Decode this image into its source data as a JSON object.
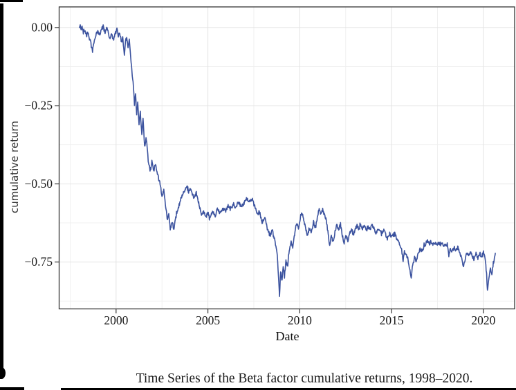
{
  "caption": {
    "text": "Time Series of the Beta factor cumulative returns, 1998–2020."
  },
  "chart_data": {
    "type": "line",
    "title": "",
    "xlabel": "Date",
    "ylabel": "cumulative return",
    "legend": "none",
    "grid": "on",
    "x_range": [
      1996.9,
      2021.7
    ],
    "y_range": [
      -0.9,
      0.066
    ],
    "x_ticks": [
      2000,
      2005,
      2010,
      2015,
      2020
    ],
    "x_tick_labels": [
      "2000",
      "2005",
      "2010",
      "2015",
      "2020"
    ],
    "x_minor_ticks": [
      1997.5,
      2002.5,
      2007.5,
      2012.5,
      2017.5
    ],
    "y_ticks": [
      0.0,
      -0.25,
      -0.5,
      -0.75
    ],
    "y_tick_labels": [
      "0.00",
      "−0.25",
      "−0.50",
      "−0.75"
    ],
    "y_minor_ticks": [
      -0.125,
      -0.375,
      -0.625,
      -0.875
    ],
    "line_color": "#3B529E",
    "grid_major_color": "#e3e3e3",
    "grid_minor_color": "#efefef",
    "panel_border_color": "#343434",
    "tick_color": "#333333",
    "tick_label_color": "#1a1a1a",
    "jitter_amplitude": 0.0055,
    "interp_step_years": 0.02,
    "series": [
      {
        "name": "Beta factor cumulative return",
        "points": [
          [
            1998.0,
            0.0
          ],
          [
            1998.05,
            0.005
          ],
          [
            1998.1,
            -0.005
          ],
          [
            1998.15,
            0.002
          ],
          [
            1998.22,
            -0.015
          ],
          [
            1998.3,
            -0.008
          ],
          [
            1998.38,
            -0.022
          ],
          [
            1998.45,
            -0.012
          ],
          [
            1998.55,
            -0.035
          ],
          [
            1998.65,
            -0.055
          ],
          [
            1998.72,
            -0.075
          ],
          [
            1998.8,
            -0.045
          ],
          [
            1998.9,
            -0.025
          ],
          [
            1999.0,
            -0.012
          ],
          [
            1999.1,
            -0.025
          ],
          [
            1999.2,
            -0.005
          ],
          [
            1999.3,
            0.004
          ],
          [
            1999.4,
            -0.015
          ],
          [
            1999.5,
            0.002
          ],
          [
            1999.58,
            -0.018
          ],
          [
            1999.65,
            -0.035
          ],
          [
            1999.75,
            -0.02
          ],
          [
            1999.85,
            -0.04
          ],
          [
            1999.95,
            -0.022
          ],
          [
            2000.05,
            -0.005
          ],
          [
            2000.12,
            -0.03
          ],
          [
            2000.2,
            -0.015
          ],
          [
            2000.28,
            -0.045
          ],
          [
            2000.36,
            -0.03
          ],
          [
            2000.45,
            -0.088
          ],
          [
            2000.52,
            -0.04
          ],
          [
            2000.58,
            -0.028
          ],
          [
            2000.65,
            -0.06
          ],
          [
            2000.72,
            -0.042
          ],
          [
            2000.8,
            -0.095
          ],
          [
            2000.88,
            -0.15
          ],
          [
            2000.95,
            -0.19
          ],
          [
            2001.0,
            -0.25
          ],
          [
            2001.06,
            -0.21
          ],
          [
            2001.12,
            -0.28
          ],
          [
            2001.18,
            -0.24
          ],
          [
            2001.25,
            -0.31
          ],
          [
            2001.32,
            -0.27
          ],
          [
            2001.4,
            -0.345
          ],
          [
            2001.47,
            -0.29
          ],
          [
            2001.55,
            -0.38
          ],
          [
            2001.65,
            -0.35
          ],
          [
            2001.75,
            -0.425
          ],
          [
            2001.85,
            -0.455
          ],
          [
            2001.95,
            -0.43
          ],
          [
            2002.05,
            -0.46
          ],
          [
            2002.15,
            -0.435
          ],
          [
            2002.25,
            -0.47
          ],
          [
            2002.4,
            -0.5
          ],
          [
            2002.5,
            -0.54
          ],
          [
            2002.6,
            -0.52
          ],
          [
            2002.7,
            -0.575
          ],
          [
            2002.8,
            -0.615
          ],
          [
            2002.87,
            -0.59
          ],
          [
            2002.95,
            -0.645
          ],
          [
            2003.05,
            -0.62
          ],
          [
            2003.15,
            -0.645
          ],
          [
            2003.25,
            -0.61
          ],
          [
            2003.35,
            -0.585
          ],
          [
            2003.45,
            -0.565
          ],
          [
            2003.55,
            -0.545
          ],
          [
            2003.65,
            -0.532
          ],
          [
            2003.75,
            -0.523
          ],
          [
            2003.85,
            -0.51
          ],
          [
            2003.95,
            -0.525
          ],
          [
            2004.05,
            -0.515
          ],
          [
            2004.15,
            -0.532
          ],
          [
            2004.25,
            -0.548
          ],
          [
            2004.35,
            -0.532
          ],
          [
            2004.5,
            -0.562
          ],
          [
            2004.65,
            -0.6
          ],
          [
            2004.75,
            -0.585
          ],
          [
            2004.9,
            -0.607
          ],
          [
            2005.0,
            -0.592
          ],
          [
            2005.1,
            -0.612
          ],
          [
            2005.25,
            -0.588
          ],
          [
            2005.4,
            -0.603
          ],
          [
            2005.5,
            -0.578
          ],
          [
            2005.65,
            -0.592
          ],
          [
            2005.8,
            -0.578
          ],
          [
            2005.95,
            -0.588
          ],
          [
            2006.1,
            -0.568
          ],
          [
            2006.25,
            -0.582
          ],
          [
            2006.4,
            -0.562
          ],
          [
            2006.5,
            -0.577
          ],
          [
            2006.65,
            -0.558
          ],
          [
            2006.8,
            -0.572
          ],
          [
            2006.95,
            -0.562
          ],
          [
            2007.1,
            -0.548
          ],
          [
            2007.25,
            -0.558
          ],
          [
            2007.4,
            -0.548
          ],
          [
            2007.55,
            -0.572
          ],
          [
            2007.7,
            -0.6
          ],
          [
            2007.8,
            -0.587
          ],
          [
            2007.95,
            -0.625
          ],
          [
            2008.1,
            -0.607
          ],
          [
            2008.25,
            -0.647
          ],
          [
            2008.4,
            -0.665
          ],
          [
            2008.5,
            -0.647
          ],
          [
            2008.6,
            -0.672
          ],
          [
            2008.7,
            -0.7
          ],
          [
            2008.78,
            -0.73
          ],
          [
            2008.84,
            -0.79
          ],
          [
            2008.9,
            -0.855
          ],
          [
            2008.96,
            -0.78
          ],
          [
            2009.04,
            -0.812
          ],
          [
            2009.1,
            -0.762
          ],
          [
            2009.17,
            -0.8
          ],
          [
            2009.25,
            -0.742
          ],
          [
            2009.33,
            -0.763
          ],
          [
            2009.43,
            -0.712
          ],
          [
            2009.53,
            -0.687
          ],
          [
            2009.62,
            -0.703
          ],
          [
            2009.72,
            -0.657
          ],
          [
            2009.83,
            -0.625
          ],
          [
            2009.93,
            -0.642
          ],
          [
            2010.05,
            -0.605
          ],
          [
            2010.12,
            -0.59
          ],
          [
            2010.22,
            -0.618
          ],
          [
            2010.32,
            -0.642
          ],
          [
            2010.42,
            -0.668
          ],
          [
            2010.52,
            -0.64
          ],
          [
            2010.62,
            -0.658
          ],
          [
            2010.75,
            -0.622
          ],
          [
            2010.88,
            -0.635
          ],
          [
            2010.98,
            -0.598
          ],
          [
            2011.06,
            -0.578
          ],
          [
            2011.15,
            -0.596
          ],
          [
            2011.25,
            -0.583
          ],
          [
            2011.35,
            -0.602
          ],
          [
            2011.45,
            -0.617
          ],
          [
            2011.55,
            -0.66
          ],
          [
            2011.63,
            -0.702
          ],
          [
            2011.72,
            -0.665
          ],
          [
            2011.82,
            -0.688
          ],
          [
            2011.92,
            -0.655
          ],
          [
            2012.02,
            -0.628
          ],
          [
            2012.12,
            -0.648
          ],
          [
            2012.22,
            -0.628
          ],
          [
            2012.32,
            -0.667
          ],
          [
            2012.42,
            -0.69
          ],
          [
            2012.52,
            -0.665
          ],
          [
            2012.62,
            -0.682
          ],
          [
            2012.72,
            -0.657
          ],
          [
            2012.82,
            -0.645
          ],
          [
            2012.92,
            -0.662
          ],
          [
            2013.02,
            -0.645
          ],
          [
            2013.12,
            -0.632
          ],
          [
            2013.22,
            -0.647
          ],
          [
            2013.32,
            -0.63
          ],
          [
            2013.42,
            -0.643
          ],
          [
            2013.52,
            -0.63
          ],
          [
            2013.62,
            -0.648
          ],
          [
            2013.72,
            -0.635
          ],
          [
            2013.82,
            -0.647
          ],
          [
            2013.92,
            -0.632
          ],
          [
            2014.02,
            -0.64
          ],
          [
            2014.15,
            -0.657
          ],
          [
            2014.3,
            -0.642
          ],
          [
            2014.45,
            -0.662
          ],
          [
            2014.6,
            -0.647
          ],
          [
            2014.75,
            -0.677
          ],
          [
            2014.9,
            -0.66
          ],
          [
            2015.02,
            -0.672
          ],
          [
            2015.15,
            -0.657
          ],
          [
            2015.3,
            -0.677
          ],
          [
            2015.45,
            -0.692
          ],
          [
            2015.55,
            -0.712
          ],
          [
            2015.63,
            -0.747
          ],
          [
            2015.7,
            -0.712
          ],
          [
            2015.8,
            -0.727
          ],
          [
            2015.9,
            -0.742
          ],
          [
            2016.0,
            -0.777
          ],
          [
            2016.07,
            -0.8
          ],
          [
            2016.15,
            -0.76
          ],
          [
            2016.25,
            -0.737
          ],
          [
            2016.35,
            -0.747
          ],
          [
            2016.45,
            -0.722
          ],
          [
            2016.55,
            -0.707
          ],
          [
            2016.65,
            -0.717
          ],
          [
            2016.75,
            -0.702
          ],
          [
            2016.85,
            -0.692
          ],
          [
            2016.95,
            -0.682
          ],
          [
            2017.05,
            -0.692
          ],
          [
            2017.15,
            -0.684
          ],
          [
            2017.25,
            -0.694
          ],
          [
            2017.35,
            -0.686
          ],
          [
            2017.45,
            -0.696
          ],
          [
            2017.55,
            -0.688
          ],
          [
            2017.65,
            -0.698
          ],
          [
            2017.75,
            -0.691
          ],
          [
            2017.85,
            -0.701
          ],
          [
            2017.95,
            -0.694
          ],
          [
            2018.05,
            -0.702
          ],
          [
            2018.12,
            -0.726
          ],
          [
            2018.2,
            -0.706
          ],
          [
            2018.3,
            -0.717
          ],
          [
            2018.4,
            -0.702
          ],
          [
            2018.5,
            -0.712
          ],
          [
            2018.6,
            -0.702
          ],
          [
            2018.7,
            -0.716
          ],
          [
            2018.8,
            -0.736
          ],
          [
            2018.92,
            -0.766
          ],
          [
            2019.0,
            -0.746
          ],
          [
            2019.1,
            -0.72
          ],
          [
            2019.2,
            -0.732
          ],
          [
            2019.3,
            -0.717
          ],
          [
            2019.4,
            -0.732
          ],
          [
            2019.5,
            -0.742
          ],
          [
            2019.6,
            -0.722
          ],
          [
            2019.7,
            -0.737
          ],
          [
            2019.8,
            -0.722
          ],
          [
            2019.9,
            -0.732
          ],
          [
            2020.0,
            -0.717
          ],
          [
            2020.08,
            -0.737
          ],
          [
            2020.15,
            -0.772
          ],
          [
            2020.22,
            -0.845
          ],
          [
            2020.3,
            -0.798
          ],
          [
            2020.38,
            -0.772
          ],
          [
            2020.46,
            -0.787
          ],
          [
            2020.54,
            -0.752
          ],
          [
            2020.6,
            -0.737
          ],
          [
            2020.65,
            -0.722
          ]
        ]
      }
    ]
  }
}
